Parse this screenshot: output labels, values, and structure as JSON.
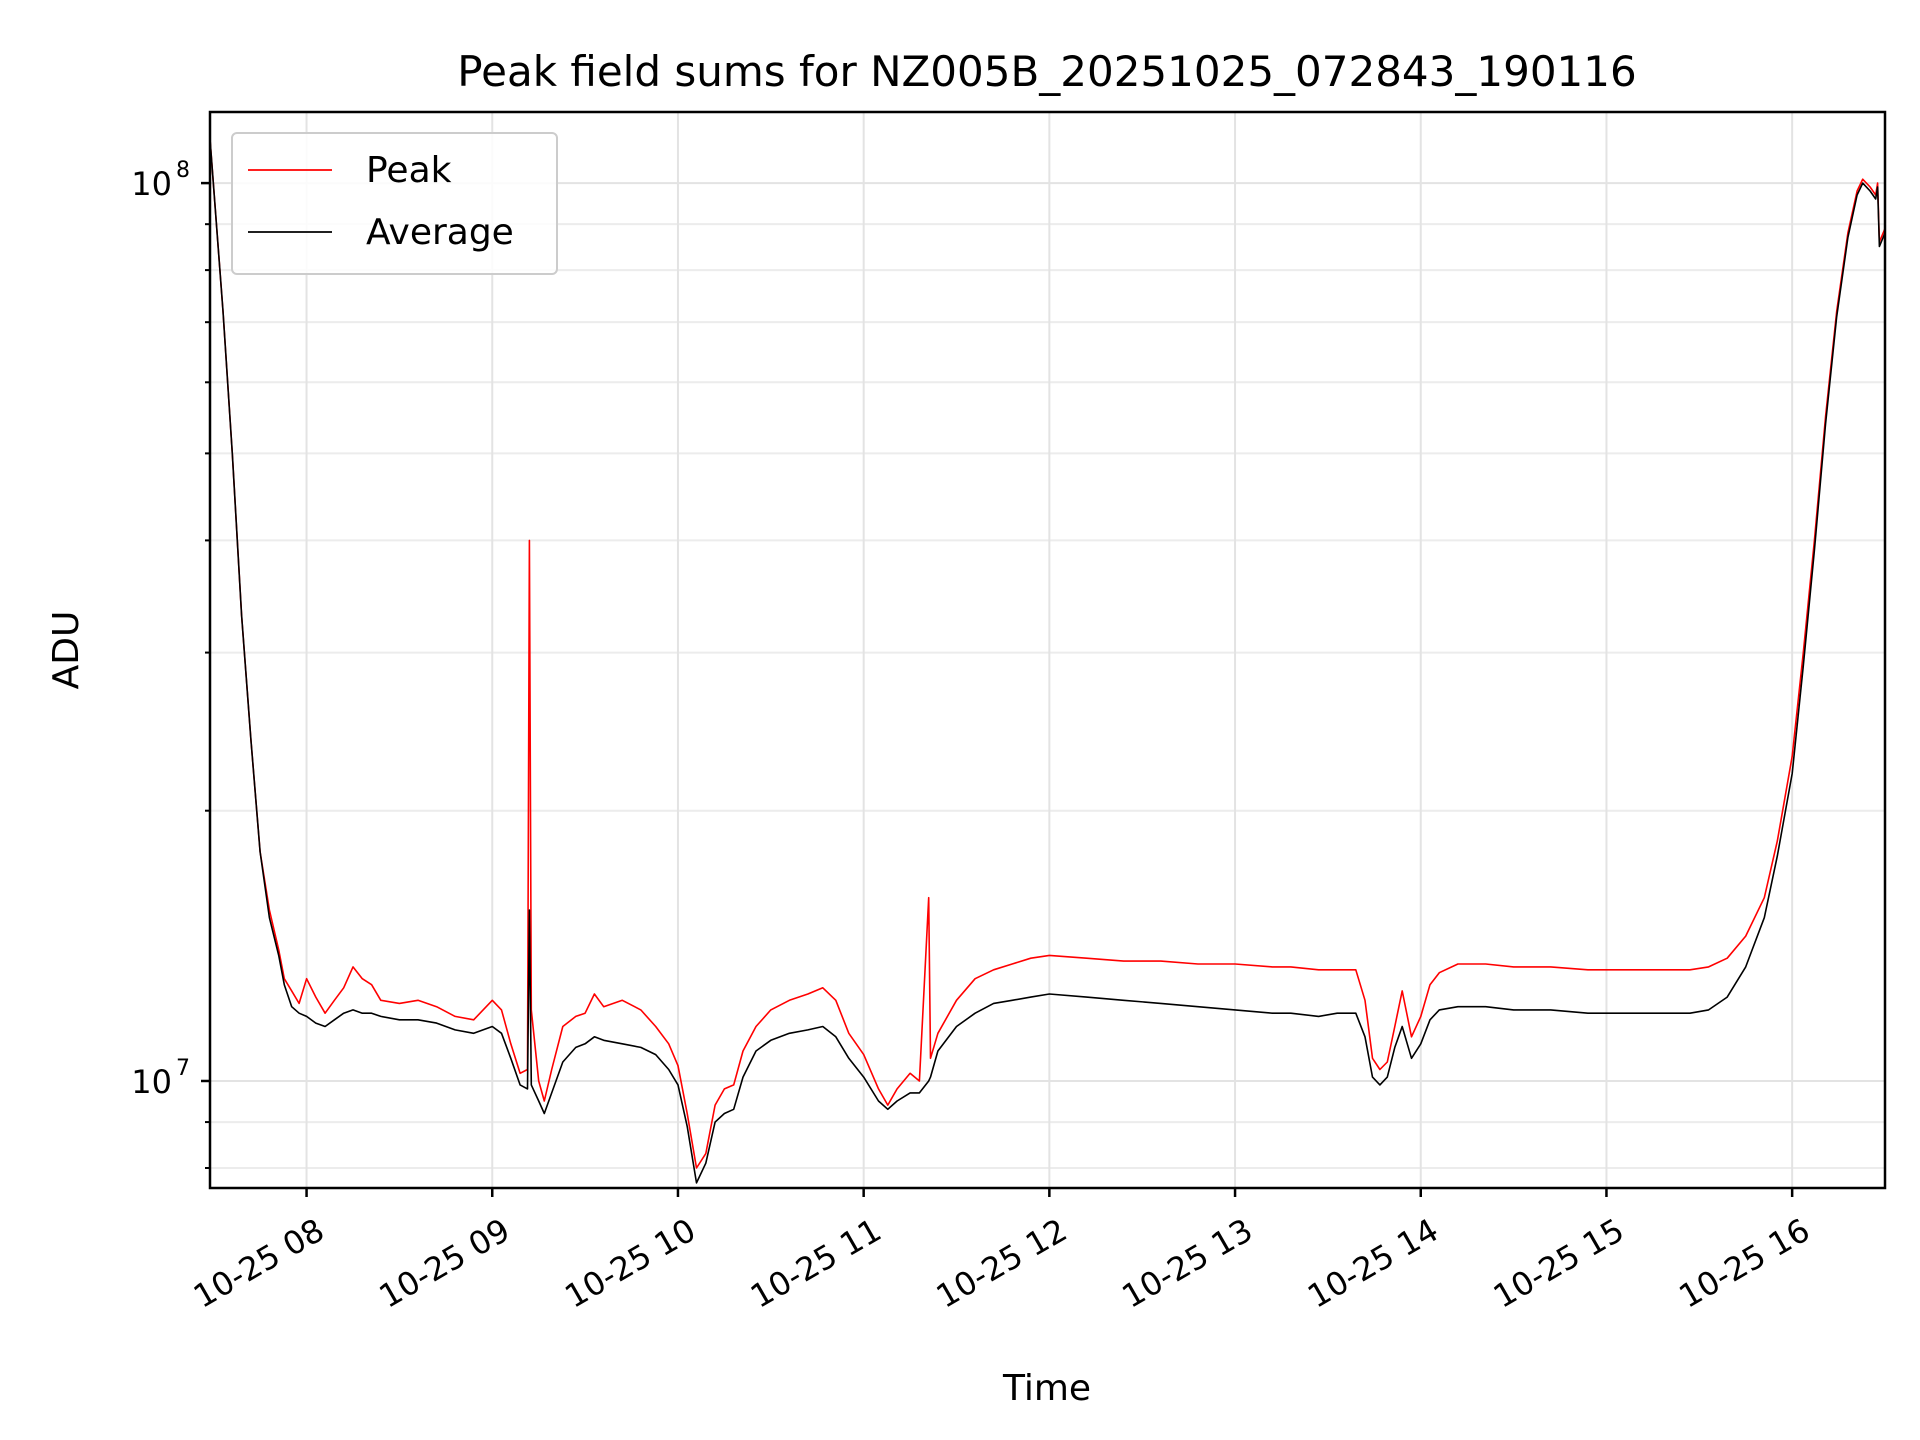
{
  "chart_data": {
    "type": "line",
    "title": "Peak field sums for NZ005B_20251025_072843_190116",
    "xlabel": "Time",
    "ylabel": "ADU",
    "x_unit": "hours (time of day, 2025-10-25)",
    "xlim": [
      7.48,
      16.5
    ],
    "ylim": [
      7600000,
      120000000
    ],
    "yscale": "log",
    "grid": true,
    "legend": "top-left",
    "x_ticks": [
      {
        "value": 8,
        "label": "10-25 08"
      },
      {
        "value": 9,
        "label": "10-25 09"
      },
      {
        "value": 10,
        "label": "10-25 10"
      },
      {
        "value": 11,
        "label": "10-25 11"
      },
      {
        "value": 12,
        "label": "10-25 12"
      },
      {
        "value": 13,
        "label": "10-25 13"
      },
      {
        "value": 14,
        "label": "10-25 14"
      },
      {
        "value": 15,
        "label": "10-25 15"
      },
      {
        "value": 16,
        "label": "10-25 16"
      }
    ],
    "y_major_ticks": [
      {
        "value": 10000000,
        "label_base": "10",
        "label_exp": "7"
      },
      {
        "value": 100000000,
        "label_base": "10",
        "label_exp": "8"
      }
    ],
    "y_minor_ticks": [
      8000000,
      9000000,
      20000000,
      30000000,
      40000000,
      50000000,
      60000000,
      70000000,
      80000000,
      90000000
    ],
    "series": [
      {
        "name": "Peak",
        "color": "#ff0000",
        "points": [
          [
            7.48,
            112000000
          ],
          [
            7.55,
            72000000
          ],
          [
            7.6,
            50000000
          ],
          [
            7.65,
            33000000
          ],
          [
            7.7,
            24000000
          ],
          [
            7.75,
            18000000
          ],
          [
            7.8,
            15500000
          ],
          [
            7.85,
            14000000
          ],
          [
            7.88,
            13000000
          ],
          [
            7.92,
            12600000
          ],
          [
            7.96,
            12200000
          ],
          [
            8.0,
            13000000
          ],
          [
            8.05,
            12400000
          ],
          [
            8.1,
            11900000
          ],
          [
            8.15,
            12300000
          ],
          [
            8.2,
            12700000
          ],
          [
            8.25,
            13400000
          ],
          [
            8.3,
            13000000
          ],
          [
            8.35,
            12800000
          ],
          [
            8.4,
            12300000
          ],
          [
            8.5,
            12200000
          ],
          [
            8.6,
            12300000
          ],
          [
            8.7,
            12100000
          ],
          [
            8.8,
            11800000
          ],
          [
            8.9,
            11700000
          ],
          [
            9.0,
            12300000
          ],
          [
            9.05,
            12000000
          ],
          [
            9.1,
            11000000
          ],
          [
            9.15,
            10200000
          ],
          [
            9.19,
            10300000
          ],
          [
            9.2,
            40000000
          ],
          [
            9.21,
            12000000
          ],
          [
            9.25,
            10000000
          ],
          [
            9.28,
            9500000
          ],
          [
            9.32,
            10300000
          ],
          [
            9.38,
            11500000
          ],
          [
            9.45,
            11800000
          ],
          [
            9.5,
            11900000
          ],
          [
            9.55,
            12500000
          ],
          [
            9.6,
            12100000
          ],
          [
            9.7,
            12300000
          ],
          [
            9.8,
            12000000
          ],
          [
            9.88,
            11500000
          ],
          [
            9.95,
            11000000
          ],
          [
            10.0,
            10400000
          ],
          [
            10.05,
            9200000
          ],
          [
            10.1,
            8000000
          ],
          [
            10.15,
            8300000
          ],
          [
            10.2,
            9400000
          ],
          [
            10.25,
            9800000
          ],
          [
            10.3,
            9900000
          ],
          [
            10.35,
            10800000
          ],
          [
            10.42,
            11500000
          ],
          [
            10.5,
            12000000
          ],
          [
            10.6,
            12300000
          ],
          [
            10.7,
            12500000
          ],
          [
            10.78,
            12700000
          ],
          [
            10.85,
            12300000
          ],
          [
            10.92,
            11300000
          ],
          [
            11.0,
            10700000
          ],
          [
            11.08,
            9800000
          ],
          [
            11.13,
            9400000
          ],
          [
            11.18,
            9800000
          ],
          [
            11.25,
            10200000
          ],
          [
            11.3,
            10000000
          ],
          [
            11.35,
            16000000
          ],
          [
            11.36,
            10600000
          ],
          [
            11.4,
            11300000
          ],
          [
            11.5,
            12300000
          ],
          [
            11.6,
            13000000
          ],
          [
            11.7,
            13300000
          ],
          [
            11.8,
            13500000
          ],
          [
            11.9,
            13700000
          ],
          [
            12.0,
            13800000
          ],
          [
            12.2,
            13700000
          ],
          [
            12.4,
            13600000
          ],
          [
            12.6,
            13600000
          ],
          [
            12.8,
            13500000
          ],
          [
            13.0,
            13500000
          ],
          [
            13.2,
            13400000
          ],
          [
            13.3,
            13400000
          ],
          [
            13.45,
            13300000
          ],
          [
            13.55,
            13300000
          ],
          [
            13.65,
            13300000
          ],
          [
            13.7,
            12300000
          ],
          [
            13.74,
            10600000
          ],
          [
            13.78,
            10300000
          ],
          [
            13.82,
            10500000
          ],
          [
            13.86,
            11500000
          ],
          [
            13.9,
            12600000
          ],
          [
            13.95,
            11200000
          ],
          [
            14.0,
            11800000
          ],
          [
            14.05,
            12800000
          ],
          [
            14.1,
            13200000
          ],
          [
            14.2,
            13500000
          ],
          [
            14.35,
            13500000
          ],
          [
            14.5,
            13400000
          ],
          [
            14.7,
            13400000
          ],
          [
            14.9,
            13300000
          ],
          [
            15.1,
            13300000
          ],
          [
            15.3,
            13300000
          ],
          [
            15.45,
            13300000
          ],
          [
            15.55,
            13400000
          ],
          [
            15.65,
            13700000
          ],
          [
            15.75,
            14500000
          ],
          [
            15.85,
            16000000
          ],
          [
            15.92,
            18500000
          ],
          [
            16.0,
            23000000
          ],
          [
            16.06,
            30000000
          ],
          [
            16.12,
            40000000
          ],
          [
            16.18,
            55000000
          ],
          [
            16.24,
            72000000
          ],
          [
            16.3,
            88000000
          ],
          [
            16.35,
            98000000
          ],
          [
            16.38,
            101000000
          ],
          [
            16.42,
            99000000
          ],
          [
            16.45,
            97000000
          ],
          [
            16.46,
            100000000
          ],
          [
            16.47,
            86000000
          ],
          [
            16.5,
            89000000
          ]
        ]
      },
      {
        "name": "Average",
        "color": "#000000",
        "points": [
          [
            7.48,
            112000000
          ],
          [
            7.55,
            72000000
          ],
          [
            7.6,
            50000000
          ],
          [
            7.65,
            33000000
          ],
          [
            7.7,
            24000000
          ],
          [
            7.75,
            18000000
          ],
          [
            7.8,
            15200000
          ],
          [
            7.85,
            13800000
          ],
          [
            7.88,
            12800000
          ],
          [
            7.92,
            12100000
          ],
          [
            7.96,
            11900000
          ],
          [
            8.0,
            11800000
          ],
          [
            8.05,
            11600000
          ],
          [
            8.1,
            11500000
          ],
          [
            8.15,
            11700000
          ],
          [
            8.2,
            11900000
          ],
          [
            8.25,
            12000000
          ],
          [
            8.3,
            11900000
          ],
          [
            8.35,
            11900000
          ],
          [
            8.4,
            11800000
          ],
          [
            8.5,
            11700000
          ],
          [
            8.6,
            11700000
          ],
          [
            8.7,
            11600000
          ],
          [
            8.8,
            11400000
          ],
          [
            8.9,
            11300000
          ],
          [
            9.0,
            11500000
          ],
          [
            9.05,
            11300000
          ],
          [
            9.1,
            10600000
          ],
          [
            9.15,
            9900000
          ],
          [
            9.19,
            9800000
          ],
          [
            9.2,
            15500000
          ],
          [
            9.21,
            9900000
          ],
          [
            9.25,
            9500000
          ],
          [
            9.28,
            9200000
          ],
          [
            9.32,
            9700000
          ],
          [
            9.38,
            10500000
          ],
          [
            9.45,
            10900000
          ],
          [
            9.5,
            11000000
          ],
          [
            9.55,
            11200000
          ],
          [
            9.6,
            11100000
          ],
          [
            9.7,
            11000000
          ],
          [
            9.8,
            10900000
          ],
          [
            9.88,
            10700000
          ],
          [
            9.95,
            10300000
          ],
          [
            10.0,
            9900000
          ],
          [
            10.05,
            8900000
          ],
          [
            10.1,
            7700000
          ],
          [
            10.15,
            8100000
          ],
          [
            10.2,
            9000000
          ],
          [
            10.25,
            9200000
          ],
          [
            10.3,
            9300000
          ],
          [
            10.35,
            10100000
          ],
          [
            10.42,
            10800000
          ],
          [
            10.5,
            11100000
          ],
          [
            10.6,
            11300000
          ],
          [
            10.7,
            11400000
          ],
          [
            10.78,
            11500000
          ],
          [
            10.85,
            11200000
          ],
          [
            10.92,
            10600000
          ],
          [
            11.0,
            10100000
          ],
          [
            11.08,
            9500000
          ],
          [
            11.13,
            9300000
          ],
          [
            11.18,
            9500000
          ],
          [
            11.25,
            9700000
          ],
          [
            11.3,
            9700000
          ],
          [
            11.35,
            10000000
          ],
          [
            11.36,
            10100000
          ],
          [
            11.4,
            10800000
          ],
          [
            11.5,
            11500000
          ],
          [
            11.6,
            11900000
          ],
          [
            11.7,
            12200000
          ],
          [
            11.8,
            12300000
          ],
          [
            11.9,
            12400000
          ],
          [
            12.0,
            12500000
          ],
          [
            12.2,
            12400000
          ],
          [
            12.4,
            12300000
          ],
          [
            12.6,
            12200000
          ],
          [
            12.8,
            12100000
          ],
          [
            13.0,
            12000000
          ],
          [
            13.2,
            11900000
          ],
          [
            13.3,
            11900000
          ],
          [
            13.45,
            11800000
          ],
          [
            13.55,
            11900000
          ],
          [
            13.65,
            11900000
          ],
          [
            13.7,
            11200000
          ],
          [
            13.74,
            10100000
          ],
          [
            13.78,
            9900000
          ],
          [
            13.82,
            10100000
          ],
          [
            13.86,
            10900000
          ],
          [
            13.9,
            11500000
          ],
          [
            13.95,
            10600000
          ],
          [
            14.0,
            11000000
          ],
          [
            14.05,
            11700000
          ],
          [
            14.1,
            12000000
          ],
          [
            14.2,
            12100000
          ],
          [
            14.35,
            12100000
          ],
          [
            14.5,
            12000000
          ],
          [
            14.7,
            12000000
          ],
          [
            14.9,
            11900000
          ],
          [
            15.1,
            11900000
          ],
          [
            15.3,
            11900000
          ],
          [
            15.45,
            11900000
          ],
          [
            15.55,
            12000000
          ],
          [
            15.65,
            12400000
          ],
          [
            15.75,
            13400000
          ],
          [
            15.85,
            15200000
          ],
          [
            15.92,
            17800000
          ],
          [
            16.0,
            22000000
          ],
          [
            16.06,
            29000000
          ],
          [
            16.12,
            39000000
          ],
          [
            16.18,
            54000000
          ],
          [
            16.24,
            71000000
          ],
          [
            16.3,
            87000000
          ],
          [
            16.35,
            97000000
          ],
          [
            16.38,
            100000000
          ],
          [
            16.42,
            98000000
          ],
          [
            16.45,
            96000000
          ],
          [
            16.46,
            99000000
          ],
          [
            16.47,
            85000000
          ],
          [
            16.5,
            88000000
          ]
        ]
      }
    ]
  }
}
